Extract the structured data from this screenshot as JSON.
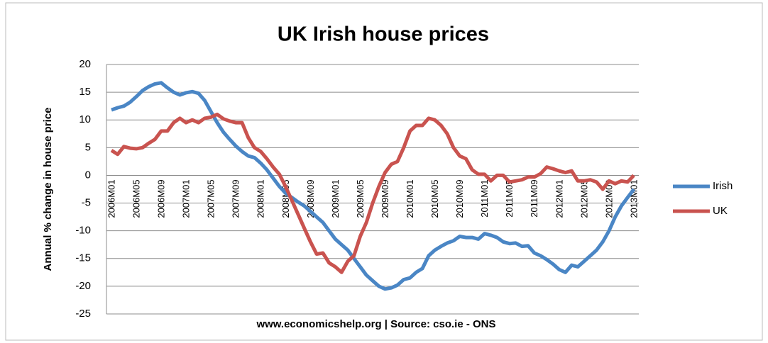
{
  "chart_data": {
    "type": "line",
    "title": "UK Irish house prices",
    "y_label": "Annual % change in house price",
    "footer": "www.economicshelp.org | Source: cso.ie - ONS",
    "categories": [
      "2006M01",
      null,
      null,
      null,
      "2006M05",
      null,
      null,
      null,
      "2006M09",
      null,
      null,
      null,
      "2007M01",
      null,
      null,
      null,
      "2007M05",
      null,
      null,
      null,
      "2007M09",
      null,
      null,
      null,
      "2008M01",
      null,
      null,
      null,
      "2008M05",
      null,
      null,
      null,
      "2008M09",
      null,
      null,
      null,
      "2009M01",
      null,
      null,
      null,
      "2009M05",
      null,
      null,
      null,
      "2009M09",
      null,
      null,
      null,
      "2010M01",
      null,
      null,
      null,
      "2010M05",
      null,
      null,
      null,
      "2010M09",
      null,
      null,
      null,
      "2011M01",
      null,
      null,
      null,
      "2011M05",
      null,
      null,
      null,
      "2011M09",
      null,
      null,
      null,
      "2012M01",
      null,
      null,
      null,
      "2012M05",
      null,
      null,
      null,
      "2012M09",
      null,
      null,
      null,
      "2013M01"
    ],
    "series": [
      {
        "name": "Irish",
        "color": "#4a86c5",
        "values": [
          11.8,
          12.2,
          12.5,
          13.2,
          14.2,
          15.3,
          16.0,
          16.5,
          16.7,
          15.8,
          15.0,
          14.5,
          14.9,
          15.1,
          14.8,
          13.5,
          11.5,
          9.5,
          7.8,
          6.5,
          5.3,
          4.3,
          3.5,
          3.2,
          2.2,
          1.0,
          -0.5,
          -2.0,
          -3.2,
          -4.0,
          -4.8,
          -5.5,
          -6.5,
          -7.5,
          -8.5,
          -10.0,
          -11.5,
          -12.5,
          -13.5,
          -15.0,
          -16.5,
          -18.0,
          -19.0,
          -20.0,
          -20.5,
          -20.3,
          -19.8,
          -18.8,
          -18.5,
          -17.5,
          -16.8,
          -14.5,
          -13.5,
          -12.8,
          -12.2,
          -11.8,
          -11.0,
          -11.2,
          -11.2,
          -11.5,
          -10.5,
          -10.8,
          -11.2,
          -12.0,
          -12.3,
          -12.2,
          -12.8,
          -12.7,
          -14.0,
          -14.5,
          -15.2,
          -16.0,
          -17.0,
          -17.5,
          -16.2,
          -16.5,
          -15.5,
          -14.5,
          -13.5,
          -12.0,
          -10.0,
          -7.5,
          -5.5,
          -4.0,
          -2.5
        ]
      },
      {
        "name": "UK",
        "color": "#c9534f",
        "values": [
          4.5,
          3.8,
          5.2,
          4.9,
          4.8,
          5.0,
          5.8,
          6.5,
          8.0,
          8.0,
          9.5,
          10.3,
          9.5,
          10.0,
          9.5,
          10.3,
          10.5,
          11.0,
          10.2,
          9.8,
          9.5,
          9.5,
          6.8,
          5.0,
          4.3,
          3.0,
          1.5,
          0.2,
          -2.0,
          -4.5,
          -7.0,
          -9.5,
          -12.0,
          -14.2,
          -14.0,
          -15.8,
          -16.5,
          -17.5,
          -15.5,
          -14.5,
          -11.0,
          -8.5,
          -5.0,
          -2.0,
          0.5,
          2.0,
          2.5,
          5.0,
          8.0,
          9.0,
          9.0,
          10.3,
          10.0,
          9.0,
          7.5,
          5.0,
          3.5,
          3.0,
          1.0,
          0.2,
          0.2,
          -1.0,
          0.0,
          0.0,
          -1.2,
          -1.0,
          -0.8,
          -0.3,
          -0.3,
          0.3,
          1.5,
          1.2,
          0.8,
          0.5,
          0.8,
          -1.0,
          -1.0,
          -0.8,
          -1.2,
          -2.5,
          -1.0,
          -1.5,
          -1.0,
          -1.2,
          0.0
        ]
      }
    ],
    "ylim": [
      -25,
      20
    ],
    "yticks": [
      -25,
      -20,
      -15,
      -10,
      -5,
      0,
      5,
      10,
      15,
      20
    ],
    "grid": true,
    "legend": "right"
  }
}
